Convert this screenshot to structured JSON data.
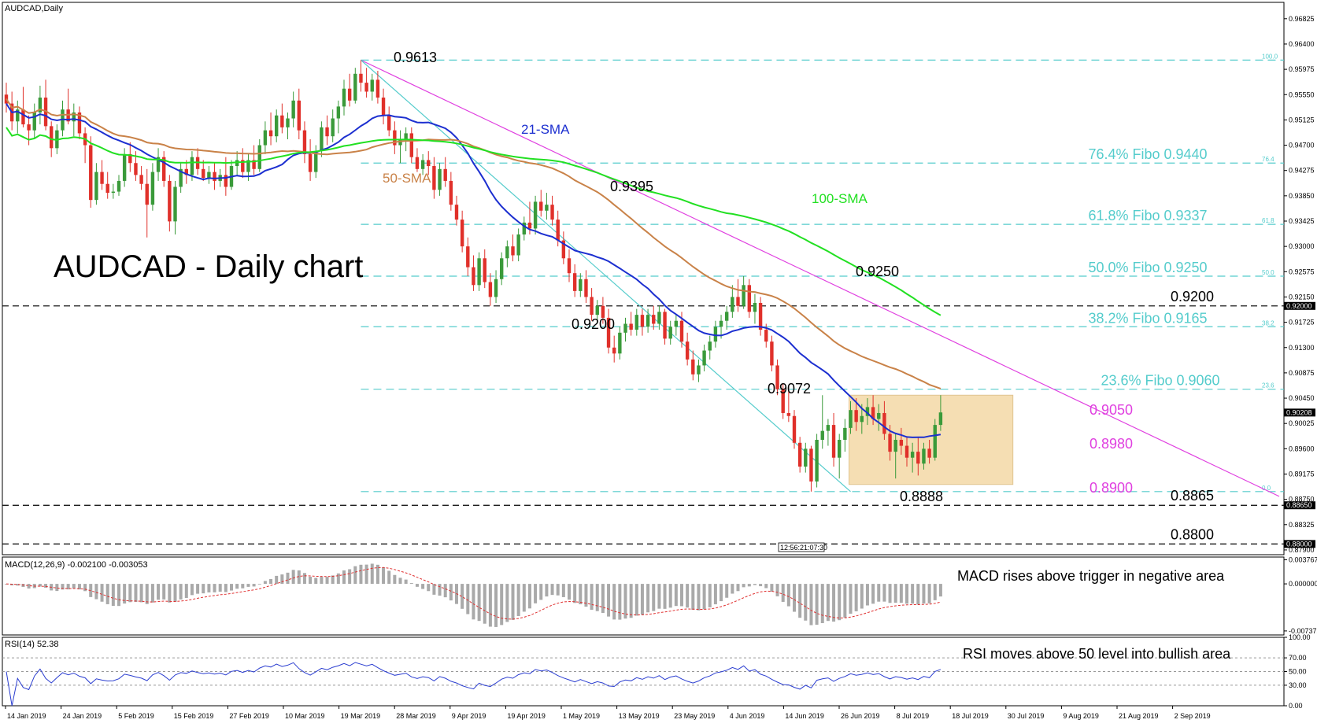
{
  "colors": {
    "bull": "#3a9a3a",
    "bear": "#e0302a",
    "sma21": "#1c2fd0",
    "sma50": "#c98248",
    "sma100": "#22e022",
    "fibo": "#55cccc",
    "trend": "#e040e0",
    "box": "#f5deb3",
    "hist": "#a9a9a9",
    "signal": "#e03030",
    "rsi": "#2a3dd0",
    "grid": "#000000"
  },
  "chart_data": {
    "type": "candlestick",
    "symbol_label": "AUDCAD,Daily",
    "title": "AUDCAD - Daily chart",
    "price_axis_ticks": [
      "0.96825",
      "0.96400",
      "0.95975",
      "0.95550",
      "0.95125",
      "0.94700",
      "0.94275",
      "0.93850",
      "0.93425",
      "0.93000",
      "0.92575",
      "0.92150",
      "0.91725",
      "0.91300",
      "0.90875",
      "0.90450",
      "0.90025",
      "0.89600",
      "0.89175",
      "0.88750",
      "0.88325",
      "0.87900"
    ],
    "price_range": [
      0.8782,
      0.971
    ],
    "current_price": "0.90208",
    "level_tags": [
      {
        "value": 0.92,
        "label": "0.92000",
        "text": "0.9200"
      },
      {
        "value": 0.8865,
        "label": "0.88650",
        "text": "0.8865"
      },
      {
        "value": 0.88,
        "label": "0.88000",
        "text": "0.8800"
      }
    ],
    "dates": [
      "14 Jan 2019",
      "24 Jan 2019",
      "5 Feb 2019",
      "15 Feb 2019",
      "27 Feb 2019",
      "10 Mar 2019",
      "19 Mar 2019",
      "28 Mar 2019",
      "9 Apr 2019",
      "19 Apr 2019",
      "1 May 2019",
      "13 May 2019",
      "23 May 2019",
      "4 Jun 2019",
      "14 Jun 2019",
      "26 Jun 2019",
      "8 Jul 2019",
      "18 Jul 2019",
      "30 Jul 2019",
      "9 Aug 2019",
      "21 Aug 2019",
      "2 Sep 2019"
    ],
    "fibonacci": [
      {
        "value": 0.9613,
        "small": "100.0",
        "label": ""
      },
      {
        "value": 0.944,
        "small": "76.4",
        "label": "76.4% Fibo 0.9440"
      },
      {
        "value": 0.9337,
        "small": "61.8",
        "label": "61.8% Fibo 0.9337"
      },
      {
        "value": 0.925,
        "small": "50.0",
        "label": "50.0% Fibo 0.9250"
      },
      {
        "value": 0.9165,
        "small": "38.2",
        "label": "38.2% Fibo 0.9165"
      },
      {
        "value": 0.906,
        "small": "23.6",
        "label": "23.6% Fibo 0.9060"
      },
      {
        "value": 0.8888,
        "small": "0.0",
        "label": ""
      }
    ],
    "annotations": {
      "sma21": "21-SMA",
      "sma50": "50-SMA",
      "sma100": "100-SMA",
      "h9613": "0.9613",
      "h9395": "0.9395",
      "h9250": "0.9250",
      "l9200": "0.9200",
      "l9072": "0.9072",
      "l8888": "0.8888",
      "box_top": "0.9050",
      "box_mid": "0.8980",
      "box_bot": "0.8900",
      "time_marker": "12:56:21:07:30"
    },
    "range_box": {
      "top": 0.905,
      "bottom": 0.89
    },
    "candles": [
      {
        "o": 0.9555,
        "h": 0.9575,
        "l": 0.9525,
        "c": 0.954
      },
      {
        "o": 0.954,
        "h": 0.956,
        "l": 0.9495,
        "c": 0.951
      },
      {
        "o": 0.951,
        "h": 0.9545,
        "l": 0.949,
        "c": 0.953
      },
      {
        "o": 0.953,
        "h": 0.9568,
        "l": 0.95,
        "c": 0.9505
      },
      {
        "o": 0.9505,
        "h": 0.952,
        "l": 0.947,
        "c": 0.9495
      },
      {
        "o": 0.9495,
        "h": 0.954,
        "l": 0.948,
        "c": 0.9525
      },
      {
        "o": 0.9525,
        "h": 0.957,
        "l": 0.9505,
        "c": 0.955
      },
      {
        "o": 0.955,
        "h": 0.958,
        "l": 0.9495,
        "c": 0.9502
      },
      {
        "o": 0.9502,
        "h": 0.951,
        "l": 0.945,
        "c": 0.9465
      },
      {
        "o": 0.9465,
        "h": 0.9505,
        "l": 0.9455,
        "c": 0.9495
      },
      {
        "o": 0.9495,
        "h": 0.9545,
        "l": 0.9485,
        "c": 0.953
      },
      {
        "o": 0.953,
        "h": 0.9565,
        "l": 0.9505,
        "c": 0.951
      },
      {
        "o": 0.951,
        "h": 0.954,
        "l": 0.9485,
        "c": 0.9525
      },
      {
        "o": 0.9525,
        "h": 0.9535,
        "l": 0.948,
        "c": 0.949
      },
      {
        "o": 0.949,
        "h": 0.95,
        "l": 0.944,
        "c": 0.947
      },
      {
        "o": 0.947,
        "h": 0.9485,
        "l": 0.9365,
        "c": 0.9378
      },
      {
        "o": 0.9378,
        "h": 0.944,
        "l": 0.937,
        "c": 0.9425
      },
      {
        "o": 0.9425,
        "h": 0.9445,
        "l": 0.9395,
        "c": 0.9405
      },
      {
        "o": 0.9405,
        "h": 0.9425,
        "l": 0.938,
        "c": 0.939
      },
      {
        "o": 0.939,
        "h": 0.9405,
        "l": 0.938,
        "c": 0.9392
      },
      {
        "o": 0.9392,
        "h": 0.942,
        "l": 0.9385,
        "c": 0.941
      },
      {
        "o": 0.941,
        "h": 0.9465,
        "l": 0.94,
        "c": 0.9455
      },
      {
        "o": 0.9455,
        "h": 0.9475,
        "l": 0.9425,
        "c": 0.944
      },
      {
        "o": 0.944,
        "h": 0.946,
        "l": 0.941,
        "c": 0.942
      },
      {
        "o": 0.942,
        "h": 0.9435,
        "l": 0.9395,
        "c": 0.9405
      },
      {
        "o": 0.9405,
        "h": 0.943,
        "l": 0.9315,
        "c": 0.937
      },
      {
        "o": 0.937,
        "h": 0.944,
        "l": 0.936,
        "c": 0.9425
      },
      {
        "o": 0.9425,
        "h": 0.9465,
        "l": 0.941,
        "c": 0.945
      },
      {
        "o": 0.945,
        "h": 0.946,
        "l": 0.94,
        "c": 0.941
      },
      {
        "o": 0.941,
        "h": 0.942,
        "l": 0.9325,
        "c": 0.9342
      },
      {
        "o": 0.9342,
        "h": 0.941,
        "l": 0.932,
        "c": 0.94
      },
      {
        "o": 0.94,
        "h": 0.944,
        "l": 0.939,
        "c": 0.943
      },
      {
        "o": 0.943,
        "h": 0.9445,
        "l": 0.9405,
        "c": 0.942
      },
      {
        "o": 0.942,
        "h": 0.946,
        "l": 0.941,
        "c": 0.945
      },
      {
        "o": 0.945,
        "h": 0.9465,
        "l": 0.942,
        "c": 0.943
      },
      {
        "o": 0.943,
        "h": 0.9445,
        "l": 0.941,
        "c": 0.9415
      },
      {
        "o": 0.9415,
        "h": 0.9435,
        "l": 0.9405,
        "c": 0.9425
      },
      {
        "o": 0.9425,
        "h": 0.944,
        "l": 0.9395,
        "c": 0.941
      },
      {
        "o": 0.941,
        "h": 0.943,
        "l": 0.94,
        "c": 0.942
      },
      {
        "o": 0.942,
        "h": 0.945,
        "l": 0.9385,
        "c": 0.94
      },
      {
        "o": 0.94,
        "h": 0.9445,
        "l": 0.9395,
        "c": 0.9435
      },
      {
        "o": 0.9435,
        "h": 0.946,
        "l": 0.942,
        "c": 0.9445
      },
      {
        "o": 0.9445,
        "h": 0.9465,
        "l": 0.9415,
        "c": 0.9425
      },
      {
        "o": 0.9425,
        "h": 0.9455,
        "l": 0.941,
        "c": 0.9445
      },
      {
        "o": 0.9445,
        "h": 0.947,
        "l": 0.942,
        "c": 0.943
      },
      {
        "o": 0.943,
        "h": 0.948,
        "l": 0.9425,
        "c": 0.947
      },
      {
        "o": 0.947,
        "h": 0.951,
        "l": 0.9455,
        "c": 0.9495
      },
      {
        "o": 0.9495,
        "h": 0.9525,
        "l": 0.947,
        "c": 0.9485
      },
      {
        "o": 0.9485,
        "h": 0.953,
        "l": 0.9475,
        "c": 0.952
      },
      {
        "o": 0.952,
        "h": 0.954,
        "l": 0.949,
        "c": 0.95
      },
      {
        "o": 0.95,
        "h": 0.9525,
        "l": 0.948,
        "c": 0.9515
      },
      {
        "o": 0.9515,
        "h": 0.956,
        "l": 0.95,
        "c": 0.9545
      },
      {
        "o": 0.9545,
        "h": 0.9565,
        "l": 0.948,
        "c": 0.9495
      },
      {
        "o": 0.9495,
        "h": 0.951,
        "l": 0.944,
        "c": 0.9455
      },
      {
        "o": 0.9455,
        "h": 0.948,
        "l": 0.941,
        "c": 0.9425
      },
      {
        "o": 0.9425,
        "h": 0.947,
        "l": 0.9415,
        "c": 0.946
      },
      {
        "o": 0.946,
        "h": 0.951,
        "l": 0.945,
        "c": 0.95
      },
      {
        "o": 0.95,
        "h": 0.952,
        "l": 0.947,
        "c": 0.9485
      },
      {
        "o": 0.9485,
        "h": 0.953,
        "l": 0.9475,
        "c": 0.9515
      },
      {
        "o": 0.9515,
        "h": 0.9545,
        "l": 0.949,
        "c": 0.9535
      },
      {
        "o": 0.9535,
        "h": 0.958,
        "l": 0.952,
        "c": 0.9565
      },
      {
        "o": 0.9565,
        "h": 0.959,
        "l": 0.9535,
        "c": 0.9545
      },
      {
        "o": 0.9545,
        "h": 0.96,
        "l": 0.954,
        "c": 0.959
      },
      {
        "o": 0.959,
        "h": 0.9613,
        "l": 0.956,
        "c": 0.9575
      },
      {
        "o": 0.9575,
        "h": 0.96,
        "l": 0.955,
        "c": 0.956
      },
      {
        "o": 0.956,
        "h": 0.959,
        "l": 0.9545,
        "c": 0.958
      },
      {
        "o": 0.958,
        "h": 0.9595,
        "l": 0.954,
        "c": 0.955
      },
      {
        "o": 0.955,
        "h": 0.9565,
        "l": 0.9505,
        "c": 0.952
      },
      {
        "o": 0.952,
        "h": 0.9535,
        "l": 0.9485,
        "c": 0.9495
      },
      {
        "o": 0.9495,
        "h": 0.951,
        "l": 0.9455,
        "c": 0.947
      },
      {
        "o": 0.947,
        "h": 0.9495,
        "l": 0.944,
        "c": 0.948
      },
      {
        "o": 0.948,
        "h": 0.95,
        "l": 0.946,
        "c": 0.949
      },
      {
        "o": 0.949,
        "h": 0.95,
        "l": 0.944,
        "c": 0.945
      },
      {
        "o": 0.945,
        "h": 0.9465,
        "l": 0.9425,
        "c": 0.943
      },
      {
        "o": 0.943,
        "h": 0.9455,
        "l": 0.942,
        "c": 0.9445
      },
      {
        "o": 0.9445,
        "h": 0.946,
        "l": 0.942,
        "c": 0.9435
      },
      {
        "o": 0.9435,
        "h": 0.945,
        "l": 0.938,
        "c": 0.9395
      },
      {
        "o": 0.9395,
        "h": 0.944,
        "l": 0.9385,
        "c": 0.943
      },
      {
        "o": 0.943,
        "h": 0.945,
        "l": 0.94,
        "c": 0.941
      },
      {
        "o": 0.941,
        "h": 0.9425,
        "l": 0.936,
        "c": 0.937
      },
      {
        "o": 0.937,
        "h": 0.9385,
        "l": 0.9335,
        "c": 0.9345
      },
      {
        "o": 0.9345,
        "h": 0.936,
        "l": 0.929,
        "c": 0.93
      },
      {
        "o": 0.93,
        "h": 0.9315,
        "l": 0.925,
        "c": 0.9265
      },
      {
        "o": 0.9265,
        "h": 0.9285,
        "l": 0.9225,
        "c": 0.9235
      },
      {
        "o": 0.9235,
        "h": 0.929,
        "l": 0.9225,
        "c": 0.928
      },
      {
        "o": 0.928,
        "h": 0.9295,
        "l": 0.923,
        "c": 0.924
      },
      {
        "o": 0.924,
        "h": 0.9255,
        "l": 0.92,
        "c": 0.9215
      },
      {
        "o": 0.9215,
        "h": 0.926,
        "l": 0.9205,
        "c": 0.9245
      },
      {
        "o": 0.9245,
        "h": 0.929,
        "l": 0.9235,
        "c": 0.928
      },
      {
        "o": 0.928,
        "h": 0.931,
        "l": 0.9265,
        "c": 0.93
      },
      {
        "o": 0.93,
        "h": 0.932,
        "l": 0.9275,
        "c": 0.9285
      },
      {
        "o": 0.9285,
        "h": 0.933,
        "l": 0.9275,
        "c": 0.932
      },
      {
        "o": 0.932,
        "h": 0.935,
        "l": 0.931,
        "c": 0.934
      },
      {
        "o": 0.934,
        "h": 0.9375,
        "l": 0.932,
        "c": 0.933
      },
      {
        "o": 0.933,
        "h": 0.9385,
        "l": 0.932,
        "c": 0.9375
      },
      {
        "o": 0.9375,
        "h": 0.9395,
        "l": 0.935,
        "c": 0.936
      },
      {
        "o": 0.936,
        "h": 0.939,
        "l": 0.9345,
        "c": 0.937
      },
      {
        "o": 0.937,
        "h": 0.9385,
        "l": 0.9335,
        "c": 0.9345
      },
      {
        "o": 0.9345,
        "h": 0.936,
        "l": 0.93,
        "c": 0.931
      },
      {
        "o": 0.931,
        "h": 0.9325,
        "l": 0.927,
        "c": 0.928
      },
      {
        "o": 0.928,
        "h": 0.9295,
        "l": 0.924,
        "c": 0.9255
      },
      {
        "o": 0.9255,
        "h": 0.927,
        "l": 0.9215,
        "c": 0.9225
      },
      {
        "o": 0.9225,
        "h": 0.9255,
        "l": 0.9215,
        "c": 0.9245
      },
      {
        "o": 0.9245,
        "h": 0.926,
        "l": 0.9205,
        "c": 0.9215
      },
      {
        "o": 0.9215,
        "h": 0.923,
        "l": 0.9175,
        "c": 0.9185
      },
      {
        "o": 0.9185,
        "h": 0.921,
        "l": 0.917,
        "c": 0.92
      },
      {
        "o": 0.92,
        "h": 0.9215,
        "l": 0.917,
        "c": 0.918
      },
      {
        "o": 0.918,
        "h": 0.9195,
        "l": 0.912,
        "c": 0.913
      },
      {
        "o": 0.913,
        "h": 0.915,
        "l": 0.9105,
        "c": 0.912
      },
      {
        "o": 0.912,
        "h": 0.9165,
        "l": 0.911,
        "c": 0.9155
      },
      {
        "o": 0.9155,
        "h": 0.918,
        "l": 0.914,
        "c": 0.917
      },
      {
        "o": 0.917,
        "h": 0.919,
        "l": 0.915,
        "c": 0.916
      },
      {
        "o": 0.916,
        "h": 0.9195,
        "l": 0.915,
        "c": 0.9185
      },
      {
        "o": 0.9185,
        "h": 0.9195,
        "l": 0.915,
        "c": 0.9165
      },
      {
        "o": 0.9165,
        "h": 0.9195,
        "l": 0.9155,
        "c": 0.9185
      },
      {
        "o": 0.9185,
        "h": 0.92,
        "l": 0.916,
        "c": 0.917
      },
      {
        "o": 0.917,
        "h": 0.92,
        "l": 0.916,
        "c": 0.919
      },
      {
        "o": 0.919,
        "h": 0.9195,
        "l": 0.9135,
        "c": 0.9145
      },
      {
        "o": 0.9145,
        "h": 0.9175,
        "l": 0.9135,
        "c": 0.9165
      },
      {
        "o": 0.9165,
        "h": 0.9185,
        "l": 0.915,
        "c": 0.9175
      },
      {
        "o": 0.9175,
        "h": 0.919,
        "l": 0.913,
        "c": 0.914
      },
      {
        "o": 0.914,
        "h": 0.9155,
        "l": 0.91,
        "c": 0.911
      },
      {
        "o": 0.911,
        "h": 0.9125,
        "l": 0.9075,
        "c": 0.9085
      },
      {
        "o": 0.9085,
        "h": 0.911,
        "l": 0.9072,
        "c": 0.91
      },
      {
        "o": 0.91,
        "h": 0.9135,
        "l": 0.909,
        "c": 0.9125
      },
      {
        "o": 0.9125,
        "h": 0.915,
        "l": 0.911,
        "c": 0.914
      },
      {
        "o": 0.914,
        "h": 0.9175,
        "l": 0.913,
        "c": 0.9165
      },
      {
        "o": 0.9165,
        "h": 0.9185,
        "l": 0.9145,
        "c": 0.9175
      },
      {
        "o": 0.9175,
        "h": 0.92,
        "l": 0.916,
        "c": 0.919
      },
      {
        "o": 0.919,
        "h": 0.9235,
        "l": 0.918,
        "c": 0.9215
      },
      {
        "o": 0.9215,
        "h": 0.9245,
        "l": 0.919,
        "c": 0.92
      },
      {
        "o": 0.92,
        "h": 0.925,
        "l": 0.9195,
        "c": 0.9235
      },
      {
        "o": 0.9235,
        "h": 0.9245,
        "l": 0.918,
        "c": 0.919
      },
      {
        "o": 0.919,
        "h": 0.922,
        "l": 0.917,
        "c": 0.9205
      },
      {
        "o": 0.9205,
        "h": 0.9215,
        "l": 0.915,
        "c": 0.916
      },
      {
        "o": 0.916,
        "h": 0.917,
        "l": 0.913,
        "c": 0.914
      },
      {
        "o": 0.914,
        "h": 0.915,
        "l": 0.909,
        "c": 0.91
      },
      {
        "o": 0.91,
        "h": 0.911,
        "l": 0.905,
        "c": 0.906
      },
      {
        "o": 0.906,
        "h": 0.907,
        "l": 0.901,
        "c": 0.902
      },
      {
        "o": 0.902,
        "h": 0.9065,
        "l": 0.9005,
        "c": 0.9015
      },
      {
        "o": 0.9015,
        "h": 0.9025,
        "l": 0.896,
        "c": 0.897
      },
      {
        "o": 0.897,
        "h": 0.898,
        "l": 0.892,
        "c": 0.893
      },
      {
        "o": 0.893,
        "h": 0.897,
        "l": 0.892,
        "c": 0.896
      },
      {
        "o": 0.896,
        "h": 0.8965,
        "l": 0.8888,
        "c": 0.8905
      },
      {
        "o": 0.8905,
        "h": 0.8985,
        "l": 0.8895,
        "c": 0.8975
      },
      {
        "o": 0.8975,
        "h": 0.905,
        "l": 0.896,
        "c": 0.899
      },
      {
        "o": 0.899,
        "h": 0.901,
        "l": 0.8965,
        "c": 0.9
      },
      {
        "o": 0.9,
        "h": 0.902,
        "l": 0.893,
        "c": 0.8945
      },
      {
        "o": 0.8945,
        "h": 0.8985,
        "l": 0.891,
        "c": 0.8975
      },
      {
        "o": 0.8975,
        "h": 0.901,
        "l": 0.8955,
        "c": 0.8995
      },
      {
        "o": 0.8995,
        "h": 0.904,
        "l": 0.8985,
        "c": 0.9025
      },
      {
        "o": 0.9025,
        "h": 0.9045,
        "l": 0.899,
        "c": 0.9005
      },
      {
        "o": 0.9005,
        "h": 0.9035,
        "l": 0.8985,
        "c": 0.9015
      },
      {
        "o": 0.9015,
        "h": 0.9045,
        "l": 0.9,
        "c": 0.903
      },
      {
        "o": 0.903,
        "h": 0.905,
        "l": 0.9,
        "c": 0.901
      },
      {
        "o": 0.901,
        "h": 0.9035,
        "l": 0.899,
        "c": 0.902
      },
      {
        "o": 0.902,
        "h": 0.904,
        "l": 0.8975,
        "c": 0.8985
      },
      {
        "o": 0.8985,
        "h": 0.9,
        "l": 0.894,
        "c": 0.8955
      },
      {
        "o": 0.8955,
        "h": 0.8985,
        "l": 0.891,
        "c": 0.8975
      },
      {
        "o": 0.8975,
        "h": 0.8995,
        "l": 0.895,
        "c": 0.8965
      },
      {
        "o": 0.8965,
        "h": 0.898,
        "l": 0.893,
        "c": 0.8945
      },
      {
        "o": 0.8945,
        "h": 0.897,
        "l": 0.892,
        "c": 0.8955
      },
      {
        "o": 0.8955,
        "h": 0.898,
        "l": 0.8915,
        "c": 0.8935
      },
      {
        "o": 0.8935,
        "h": 0.897,
        "l": 0.8925,
        "c": 0.896
      },
      {
        "o": 0.896,
        "h": 0.8975,
        "l": 0.8935,
        "c": 0.8945
      },
      {
        "o": 0.8945,
        "h": 0.901,
        "l": 0.894,
        "c": 0.9
      },
      {
        "o": 0.9,
        "h": 0.905,
        "l": 0.899,
        "c": 0.9021
      }
    ],
    "macd": {
      "label": "MACD(12,26,9) -0.002100 -0.003053",
      "axis_ticks": [
        "0.003767",
        "0.000000",
        "-0.007372"
      ],
      "range": [
        -0.008,
        0.0042
      ],
      "note": "MACD rises above trigger in negative area"
    },
    "rsi": {
      "label": "RSI(14) 52.38",
      "axis_ticks": [
        "100.00",
        "70.00",
        "50.00",
        "30.00",
        "0.00"
      ],
      "range": [
        0,
        100
      ],
      "note": "RSI moves above 50 level into bullish area"
    }
  }
}
